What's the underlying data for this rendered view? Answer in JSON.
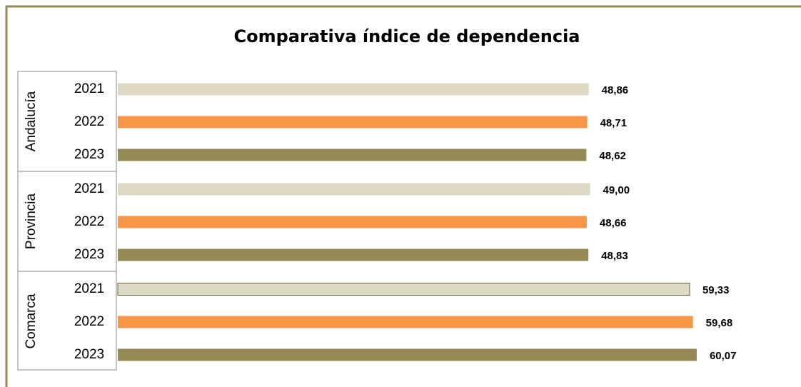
{
  "chart_data": {
    "type": "bar",
    "orientation": "horizontal",
    "title": "Comparativa índice de dependencia",
    "groups": [
      {
        "name": "Andalucía",
        "categories": [
          "2021",
          "2022",
          "2023"
        ],
        "values": [
          48.86,
          48.71,
          48.62
        ],
        "value_labels": [
          "48,86",
          "48,71",
          "48,62"
        ]
      },
      {
        "name": "Provincia",
        "categories": [
          "2021",
          "2022",
          "2023"
        ],
        "values": [
          49.0,
          48.66,
          48.83
        ],
        "value_labels": [
          "49,00",
          "48,66",
          "48,83"
        ]
      },
      {
        "name": "Comarca",
        "categories": [
          "2021",
          "2022",
          "2023"
        ],
        "values": [
          59.33,
          59.68,
          60.07
        ],
        "value_labels": [
          "59,33",
          "59,68",
          "60,07"
        ]
      }
    ],
    "colors": [
      "#ddd9c4",
      "#f79646",
      "#948a54"
    ],
    "xlim": [
      0,
      70
    ]
  }
}
